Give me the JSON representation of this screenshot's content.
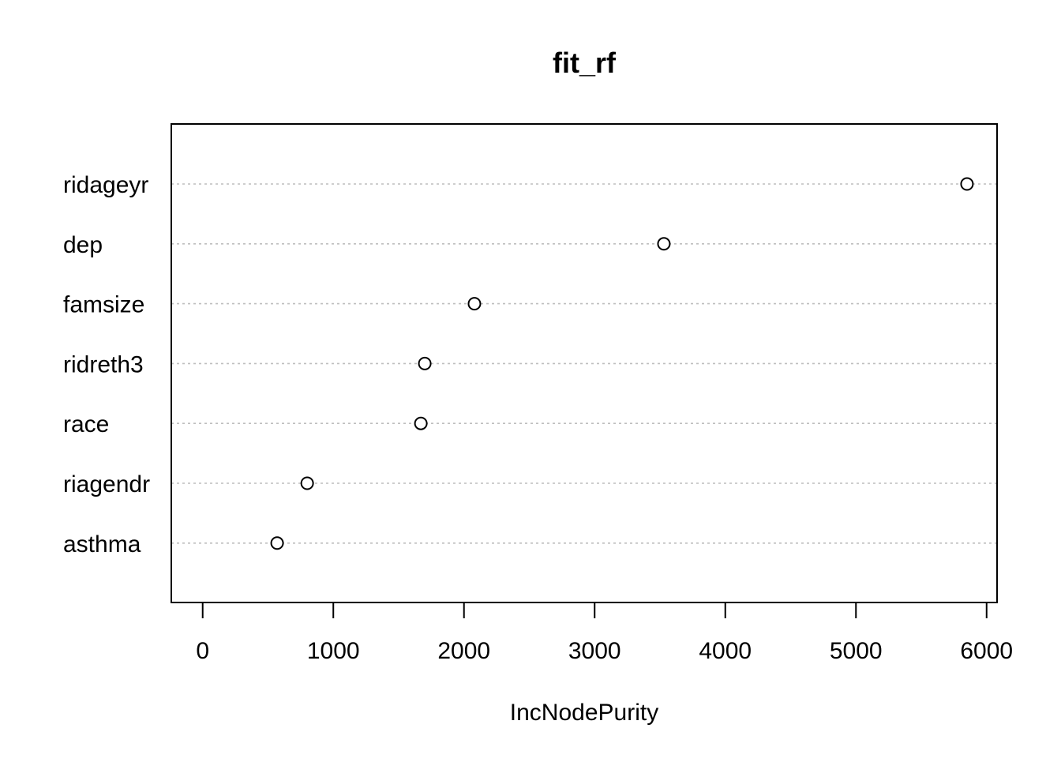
{
  "chart_data": {
    "type": "scatter",
    "variant": "dotchart",
    "title": "fit_rf",
    "xlabel": "IncNodePurity",
    "ylabel": "",
    "xlim": [
      -240,
      6080
    ],
    "xticks": [
      0,
      1000,
      2000,
      3000,
      4000,
      5000,
      6000
    ],
    "grid": "dotted horizontal guide lines per category",
    "legend": "none",
    "colors": {
      "points": "#000000",
      "guides": "#bebebe",
      "frame": "#000000"
    },
    "categories": [
      "ridageyr",
      "dep",
      "famsize",
      "ridreth3",
      "race",
      "riagendr",
      "asthma"
    ],
    "values": [
      5850,
      3530,
      2080,
      1700,
      1670,
      800,
      570
    ]
  }
}
